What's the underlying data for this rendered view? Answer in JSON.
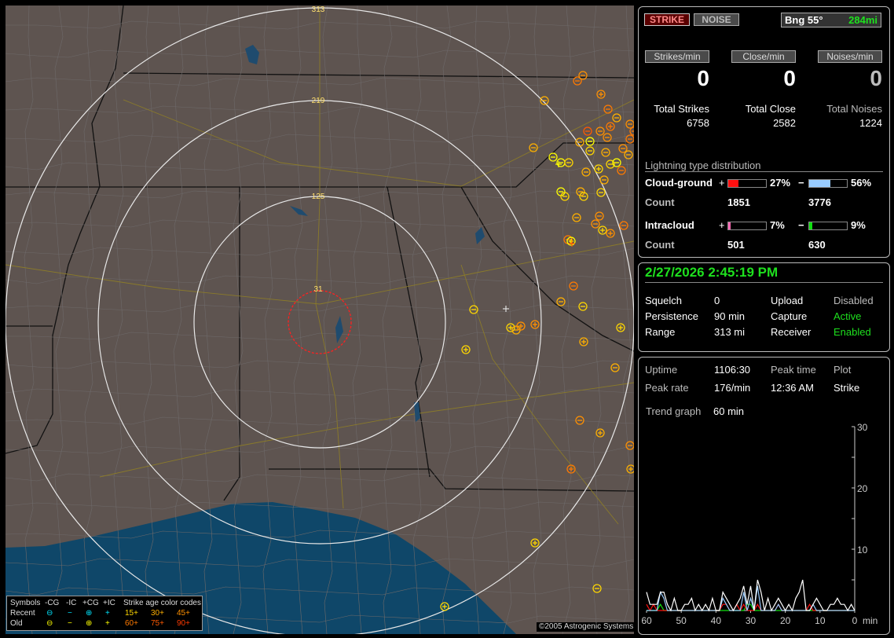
{
  "map": {
    "ring_labels": [
      "313",
      "219",
      "125",
      "31"
    ],
    "copyright": "©2005 Astrogenic Systems",
    "legend": {
      "symbols_label": "Symbols",
      "headers": [
        "-CG",
        "-IC",
        "+CG",
        "+IC"
      ],
      "rows": [
        {
          "label": "Recent",
          "color": "#00e5ff",
          "glyphs": [
            "⊖",
            "−",
            "⊕",
            "+"
          ]
        },
        {
          "label": "Old",
          "color": "#ffff00",
          "glyphs": [
            "⊖",
            "−",
            "⊕",
            "+"
          ]
        }
      ],
      "age_title": "Strike age color codes",
      "ages": [
        {
          "label": "15+",
          "color": "#ffd700"
        },
        {
          "label": "30+",
          "color": "#ffb000"
        },
        {
          "label": "45+",
          "color": "#ff9000"
        },
        {
          "label": "60+",
          "color": "#ff7a00"
        },
        {
          "label": "75+",
          "color": "#ff5a00"
        },
        {
          "label": "90+",
          "color": "#ff3a00"
        }
      ]
    }
  },
  "status": {
    "strike_button": "STRIKE",
    "noise_button": "NOISE",
    "bearing": "Bng 55°",
    "distance": "284mi",
    "rates": [
      {
        "label": "Strikes/min",
        "value": "0",
        "total_label": "Total Strikes",
        "total": "6758"
      },
      {
        "label": "Close/min",
        "value": "0",
        "total_label": "Total Close",
        "total": "2582"
      },
      {
        "label": "Noises/min",
        "value": "0",
        "total_label": "Total Noises",
        "total": "1224"
      }
    ],
    "distribution_title": "Lightning type distribution",
    "cloud_ground": {
      "label": "Cloud-ground",
      "pos_pct": 27,
      "pos_text": "27%",
      "neg_pct": 56,
      "neg_text": "56%",
      "count_label": "Count",
      "pos_count": "1851",
      "neg_count": "3776",
      "pos_color": "#ff1010",
      "neg_color": "#99ccff"
    },
    "intracloud": {
      "label": "Intracloud",
      "pos_pct": 7,
      "pos_text": "7%",
      "neg_pct": 9,
      "neg_text": "9%",
      "count_label": "Count",
      "pos_count": "501",
      "neg_count": "630",
      "pos_color": "#ff69b4",
      "neg_color": "#10e010"
    },
    "plus": "+",
    "minus": "−"
  },
  "info": {
    "datetime": "2/27/2026 2:45:19 PM",
    "rows": [
      {
        "k1": "Squelch",
        "v1": "0",
        "k2": "Upload",
        "v2": "Disabled"
      },
      {
        "k1": "Persistence",
        "v1": "90 min",
        "k2": "Capture",
        "v2": "Active"
      },
      {
        "k1": "Range",
        "v1": "313 mi",
        "k2": "Receiver",
        "v2": "Enabled"
      }
    ]
  },
  "stats": {
    "uptime_label": "Uptime",
    "uptime": "1106:30",
    "peak_time_label": "Peak time",
    "peak_time": "12:36 AM",
    "plot_label": "Plot",
    "plot": "Strike",
    "peak_rate_label": "Peak rate",
    "peak_rate": "176/min",
    "trend_label": "Trend graph",
    "trend": "60 min"
  },
  "chart_data": {
    "type": "line",
    "xlabel": "min",
    "x_ticks": [
      "60",
      "50",
      "40",
      "30",
      "20",
      "10",
      "0"
    ],
    "y_ticks": [
      "10",
      "20",
      "30"
    ],
    "xlim": [
      60,
      0
    ],
    "ylim": [
      0,
      30
    ],
    "x": [
      60,
      59,
      58,
      57,
      56,
      55,
      54,
      53,
      52,
      51,
      50,
      49,
      48,
      47,
      46,
      45,
      44,
      43,
      42,
      41,
      40,
      39,
      38,
      37,
      36,
      35,
      34,
      33,
      32,
      31,
      30,
      29,
      28,
      27,
      26,
      25,
      24,
      23,
      22,
      21,
      20,
      19,
      18,
      17,
      16,
      15,
      14,
      13,
      12,
      11,
      10,
      9,
      8,
      7,
      6,
      5,
      4,
      3,
      2,
      1,
      0
    ],
    "series": [
      {
        "color": "#ffffff",
        "values": [
          3,
          1,
          1,
          1,
          3,
          3,
          1,
          0,
          2,
          0,
          0,
          1,
          1,
          2,
          0,
          1,
          0,
          1,
          0,
          2,
          0,
          0,
          3,
          2,
          1,
          0,
          1,
          2,
          4,
          1,
          4,
          0,
          5,
          3,
          0,
          2,
          0,
          1,
          2,
          1,
          0,
          1,
          0,
          2,
          3,
          5,
          0,
          0,
          1,
          2,
          1,
          0,
          0,
          1,
          1,
          2,
          1,
          1,
          0,
          1,
          0
        ]
      },
      {
        "color": "#99ccff",
        "values": [
          0,
          0,
          0,
          0,
          3,
          2,
          0,
          0,
          0,
          0,
          0,
          0,
          0,
          0,
          0,
          0,
          0,
          0,
          0,
          0,
          0,
          0,
          2,
          1,
          0,
          0,
          0,
          0,
          3,
          0,
          2,
          0,
          4,
          0,
          0,
          0,
          0,
          0,
          1,
          0,
          0,
          0,
          0,
          0,
          0,
          0,
          0,
          0,
          1,
          0,
          0,
          0,
          0,
          0,
          0,
          0,
          0,
          0,
          0,
          0,
          0
        ]
      },
      {
        "color": "#ff1010",
        "values": [
          1,
          0,
          1,
          0,
          0,
          0,
          0,
          0,
          0,
          0,
          0,
          0,
          0,
          0,
          0,
          0,
          0,
          0,
          0,
          0,
          0,
          0,
          1,
          1,
          0,
          0,
          1,
          0,
          1,
          0,
          0,
          0,
          1,
          0,
          0,
          0,
          0,
          0,
          1,
          0,
          0,
          0,
          0,
          0,
          0,
          0,
          0,
          1,
          0,
          0,
          0,
          0,
          0,
          0,
          0,
          0,
          0,
          0,
          0,
          0,
          0
        ]
      },
      {
        "color": "#10e010",
        "values": [
          0,
          0,
          0,
          0,
          1,
          0,
          0,
          0,
          0,
          0,
          0,
          0,
          0,
          0,
          0,
          0,
          0,
          0,
          0,
          0,
          0,
          0,
          0,
          0,
          0,
          0,
          0,
          0,
          0,
          1,
          1,
          0,
          0,
          0,
          0,
          0,
          0,
          0,
          0,
          0,
          0,
          0,
          0,
          0,
          0,
          0,
          0,
          0,
          0,
          0,
          0,
          0,
          0,
          0,
          0,
          0,
          0,
          0,
          0,
          0,
          0
        ]
      }
    ]
  }
}
